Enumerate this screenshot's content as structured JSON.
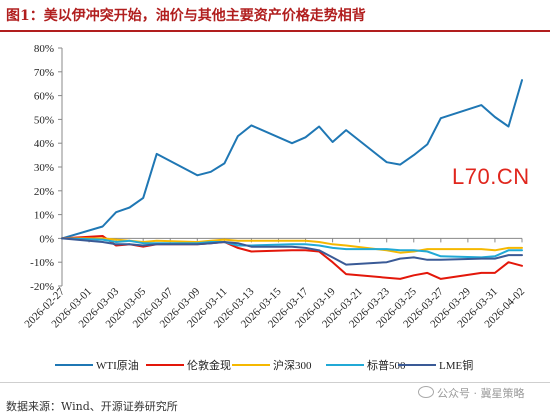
{
  "header": {
    "title": "图1：美以伊冲突开始，油价与其他主要资产价格走势相背"
  },
  "footer": {
    "source": "数据来源：Wind、开源证券研究所",
    "wechat": "公众号 · 冀星策略"
  },
  "watermark": "L70.CN",
  "chart_data": {
    "type": "line",
    "title": "",
    "xlabel": "",
    "ylabel": "",
    "ylim": [
      -20,
      80
    ],
    "yticks": [
      "80%",
      "70%",
      "60%",
      "50%",
      "40%",
      "30%",
      "20%",
      "10%",
      "0%",
      "-10%",
      "-20%"
    ],
    "ytick_values": [
      80,
      70,
      60,
      50,
      40,
      30,
      20,
      10,
      0,
      -10,
      -20
    ],
    "x": [
      "2026-02-27",
      "2026-02-28",
      "2026-03-01",
      "2026-03-02",
      "2026-03-03",
      "2026-03-04",
      "2026-03-05",
      "2026-03-06",
      "2026-03-07",
      "2026-03-08",
      "2026-03-09",
      "2026-03-10",
      "2026-03-11",
      "2026-03-12",
      "2026-03-13",
      "2026-03-14",
      "2026-03-15",
      "2026-03-16",
      "2026-03-17",
      "2026-03-18",
      "2026-03-19",
      "2026-03-20",
      "2026-03-21",
      "2026-03-22",
      "2026-03-23",
      "2026-03-24",
      "2026-03-25",
      "2026-03-26",
      "2026-03-27",
      "2026-03-28",
      "2026-03-29",
      "2026-03-30",
      "2026-03-31",
      "2026-04-01",
      "2026-04-02"
    ],
    "xticks": [
      "2026-02-27",
      "2026-03-01",
      "2026-03-03",
      "2026-03-05",
      "2026-03-07",
      "2026-03-09",
      "2026-03-11",
      "2026-03-13",
      "2026-03-15",
      "2026-03-17",
      "2026-03-19",
      "2026-03-21",
      "2026-03-23",
      "2026-03-25",
      "2026-03-27",
      "2026-03-29",
      "2026-03-31",
      "2026-04-02"
    ],
    "grid": false,
    "legend": "bottom",
    "series": [
      {
        "name": "WTI原油",
        "color": "#1f77b4",
        "points": [
          [
            "2026-02-27",
            0
          ],
          [
            "2026-03-02",
            5
          ],
          [
            "2026-03-03",
            11
          ],
          [
            "2026-03-04",
            13
          ],
          [
            "2026-03-05",
            17
          ],
          [
            "2026-03-06",
            35.5
          ],
          [
            "2026-03-09",
            26.5
          ],
          [
            "2026-03-10",
            28
          ],
          [
            "2026-03-11",
            31.5
          ],
          [
            "2026-03-12",
            43
          ],
          [
            "2026-03-13",
            47.5
          ],
          [
            "2026-03-16",
            40
          ],
          [
            "2026-03-17",
            42.5
          ],
          [
            "2026-03-18",
            47
          ],
          [
            "2026-03-19",
            40.5
          ],
          [
            "2026-03-20",
            45.5
          ],
          [
            "2026-03-23",
            32
          ],
          [
            "2026-03-24",
            31
          ],
          [
            "2026-03-25",
            35
          ],
          [
            "2026-03-26",
            39.5
          ],
          [
            "2026-03-27",
            50.5
          ],
          [
            "2026-03-30",
            56
          ],
          [
            "2026-03-31",
            51
          ],
          [
            "2026-04-01",
            47
          ],
          [
            "2026-04-02",
            66.5
          ]
        ]
      },
      {
        "name": "伦敦金现",
        "color": "#e3170a",
        "points": [
          [
            "2026-02-27",
            0
          ],
          [
            "2026-03-02",
            1
          ],
          [
            "2026-03-03",
            -3
          ],
          [
            "2026-03-04",
            -2.5
          ],
          [
            "2026-03-05",
            -3.5
          ],
          [
            "2026-03-06",
            -2.5
          ],
          [
            "2026-03-09",
            -2.5
          ],
          [
            "2026-03-10",
            -2
          ],
          [
            "2026-03-11",
            -1.5
          ],
          [
            "2026-03-12",
            -4
          ],
          [
            "2026-03-13",
            -5.5
          ],
          [
            "2026-03-16",
            -5
          ],
          [
            "2026-03-17",
            -5
          ],
          [
            "2026-03-18",
            -5.5
          ],
          [
            "2026-03-19",
            -10
          ],
          [
            "2026-03-20",
            -15
          ],
          [
            "2026-03-23",
            -16.5
          ],
          [
            "2026-03-24",
            -17
          ],
          [
            "2026-03-25",
            -15.5
          ],
          [
            "2026-03-26",
            -14.5
          ],
          [
            "2026-03-27",
            -17
          ],
          [
            "2026-03-30",
            -14.5
          ],
          [
            "2026-03-31",
            -14.5
          ],
          [
            "2026-04-01",
            -10
          ],
          [
            "2026-04-02",
            -11.5
          ]
        ]
      },
      {
        "name": "沪深300",
        "color": "#f5b800",
        "points": [
          [
            "2026-02-27",
            0
          ],
          [
            "2026-03-02",
            0
          ],
          [
            "2026-03-03",
            -0.5
          ],
          [
            "2026-03-04",
            -1
          ],
          [
            "2026-03-05",
            -1.5
          ],
          [
            "2026-03-06",
            -1
          ],
          [
            "2026-03-09",
            -1.5
          ],
          [
            "2026-03-10",
            -1
          ],
          [
            "2026-03-11",
            -0.5
          ],
          [
            "2026-03-12",
            -1
          ],
          [
            "2026-03-13",
            -1
          ],
          [
            "2026-03-16",
            -1
          ],
          [
            "2026-03-17",
            -1
          ],
          [
            "2026-03-18",
            -1.5
          ],
          [
            "2026-03-19",
            -2.5
          ],
          [
            "2026-03-20",
            -3
          ],
          [
            "2026-03-23",
            -5
          ],
          [
            "2026-03-24",
            -6
          ],
          [
            "2026-03-25",
            -5.5
          ],
          [
            "2026-03-26",
            -4.5
          ],
          [
            "2026-03-27",
            -4.5
          ],
          [
            "2026-03-30",
            -4.5
          ],
          [
            "2026-03-31",
            -5
          ],
          [
            "2026-04-01",
            -4
          ],
          [
            "2026-04-02",
            -4
          ]
        ]
      },
      {
        "name": "标普500",
        "color": "#21a9d6",
        "points": [
          [
            "2026-02-27",
            0
          ],
          [
            "2026-03-02",
            -0.5
          ],
          [
            "2026-03-03",
            -1.5
          ],
          [
            "2026-03-04",
            -1
          ],
          [
            "2026-03-05",
            -2
          ],
          [
            "2026-03-06",
            -2
          ],
          [
            "2026-03-09",
            -2
          ],
          [
            "2026-03-10",
            -1.5
          ],
          [
            "2026-03-11",
            -1.5
          ],
          [
            "2026-03-12",
            -3
          ],
          [
            "2026-03-13",
            -3
          ],
          [
            "2026-03-16",
            -2.5
          ],
          [
            "2026-03-17",
            -2.5
          ],
          [
            "2026-03-18",
            -3
          ],
          [
            "2026-03-19",
            -4
          ],
          [
            "2026-03-20",
            -4.5
          ],
          [
            "2026-03-23",
            -4.5
          ],
          [
            "2026-03-24",
            -5
          ],
          [
            "2026-03-25",
            -5
          ],
          [
            "2026-03-26",
            -5.5
          ],
          [
            "2026-03-27",
            -7.5
          ],
          [
            "2026-03-30",
            -8
          ],
          [
            "2026-03-31",
            -7.5
          ],
          [
            "2026-04-01",
            -5
          ],
          [
            "2026-04-02",
            -5
          ]
        ]
      },
      {
        "name": "LME铜",
        "color": "#3a5a96",
        "points": [
          [
            "2026-02-27",
            0
          ],
          [
            "2026-03-02",
            -1.5
          ],
          [
            "2026-03-03",
            -2.5
          ],
          [
            "2026-03-04",
            -2.5
          ],
          [
            "2026-03-05",
            -3
          ],
          [
            "2026-03-06",
            -2.5
          ],
          [
            "2026-03-09",
            -2.5
          ],
          [
            "2026-03-10",
            -2
          ],
          [
            "2026-03-11",
            -1.5
          ],
          [
            "2026-03-12",
            -2
          ],
          [
            "2026-03-13",
            -3.5
          ],
          [
            "2026-03-16",
            -3.5
          ],
          [
            "2026-03-17",
            -4
          ],
          [
            "2026-03-18",
            -5
          ],
          [
            "2026-03-19",
            -8
          ],
          [
            "2026-03-20",
            -11
          ],
          [
            "2026-03-23",
            -10
          ],
          [
            "2026-03-24",
            -8.5
          ],
          [
            "2026-03-25",
            -8
          ],
          [
            "2026-03-26",
            -9
          ],
          [
            "2026-03-27",
            -9
          ],
          [
            "2026-03-30",
            -8.5
          ],
          [
            "2026-03-31",
            -8.5
          ],
          [
            "2026-04-01",
            -7
          ],
          [
            "2026-04-02",
            -7
          ]
        ]
      }
    ]
  }
}
